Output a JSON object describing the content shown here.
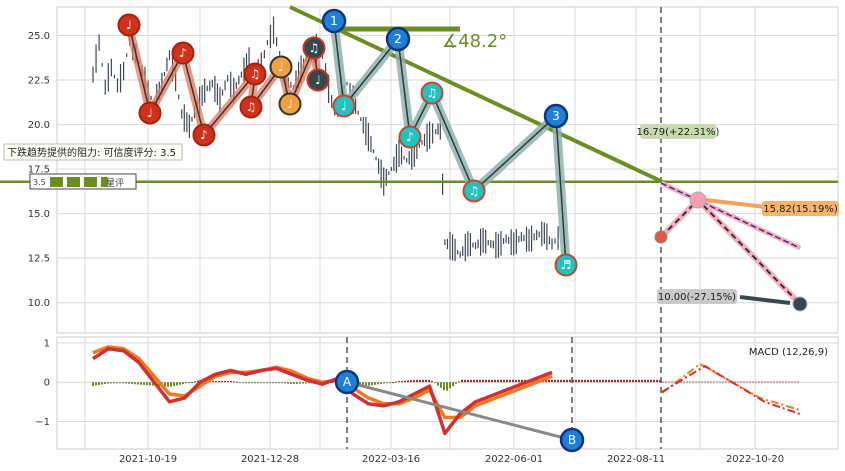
{
  "chart_data": [
    {
      "type": "line",
      "panel": "price",
      "y_ticks": [
        "25.0",
        "22.5",
        "20.0",
        "17.5",
        "15.0",
        "12.5",
        "10.0"
      ],
      "ylim": [
        8.3,
        26.6
      ],
      "x_ticks": [
        "2021-10-19",
        "2021-12-28",
        "2022-03-16",
        "2022-06-01",
        "2022-08-11",
        "2022-10-20"
      ],
      "grid": true,
      "angle_label": "∡48.2°",
      "resistance_label": "下跌趋势提供的阻力: 可信度评分: 3.5",
      "rating_label": "3.5",
      "rating_suffix": "星评",
      "rating_stars": 3.5,
      "support_level": 16.79,
      "callouts": [
        {
          "text": "16.79(+22.31%)",
          "color": "#c8dbb0"
        },
        {
          "text": "15.82(15.19%)",
          "color": "#f4b56a"
        },
        {
          "text": "10.00(-27.15%)",
          "color": "#c9c9c9"
        }
      ],
      "wave_labels": [
        "1",
        "2",
        "3"
      ],
      "series": [
        {
          "values": [
            [
              0,
              22.8
            ],
            [
              0.4,
              24.6
            ],
            [
              0.8,
              22.1
            ],
            [
              1.2,
              23.2
            ],
            [
              1.6,
              22.2
            ],
            [
              2,
              23.0
            ],
            [
              2.4,
              24.8
            ],
            [
              2.8,
              24.0
            ],
            [
              3.2,
              23.0
            ],
            [
              3.6,
              21.9
            ],
            [
              4,
              21.1
            ],
            [
              4.5,
              22.3
            ],
            [
              5,
              23.9
            ],
            [
              5.4,
              22.5
            ],
            [
              5.8,
              20.6
            ],
            [
              6.3,
              19.9
            ],
            [
              6.8,
              21.1
            ],
            [
              7.3,
              21.9
            ],
            [
              7.8,
              22.3
            ],
            [
              8.3,
              21.4
            ],
            [
              8.8,
              22.6
            ],
            [
              9.2,
              21.9
            ],
            [
              9.7,
              22.8
            ],
            [
              10.2,
              23.6
            ],
            [
              10.6,
              22.7
            ],
            [
              11,
              23.3
            ],
            [
              11.4,
              24.6
            ],
            [
              11.8,
              25.3
            ],
            [
              12.2,
              24.0
            ],
            [
              12.6,
              22.5
            ],
            [
              13.1,
              22.1
            ],
            [
              13.6,
              23.1
            ],
            [
              14.1,
              24.0
            ],
            [
              14.6,
              24.3
            ],
            [
              15,
              23.8
            ],
            [
              15.4,
              22.0
            ],
            [
              15.8,
              20.6
            ],
            [
              16.2,
              21.3
            ],
            [
              16.6,
              22.3
            ],
            [
              17,
              21.4
            ],
            [
              17.5,
              20.3
            ],
            [
              18,
              19.3
            ],
            [
              18.5,
              18.1
            ],
            [
              19,
              16.8
            ],
            [
              19.5,
              17.5
            ],
            [
              20,
              18.4
            ],
            [
              20.5,
              18.0
            ],
            [
              21,
              18.4
            ],
            [
              21.5,
              19.0
            ],
            [
              22,
              19.4
            ],
            [
              22.4,
              19.6
            ],
            [
              22.7,
              19.9
            ],
            [
              23,
              13.4
            ],
            [
              23.5,
              13.1
            ],
            [
              24,
              12.7
            ],
            [
              24.5,
              13.3
            ],
            [
              25,
              13.2
            ],
            [
              25.5,
              13.5
            ],
            [
              26,
              13.3
            ],
            [
              26.5,
              13.2
            ],
            [
              27,
              13.6
            ],
            [
              27.5,
              13.3
            ],
            [
              28,
              13.7
            ],
            [
              28.5,
              13.5
            ],
            [
              29,
              13.8
            ],
            [
              29.5,
              13.9
            ],
            [
              30,
              13.3
            ],
            [
              30.6,
              13.8
            ]
          ]
        }
      ]
    },
    {
      "type": "line",
      "panel": "macd",
      "title": "MACD (12,26,9)",
      "y_ticks": [
        "1",
        "0",
        "−1"
      ],
      "ylim": [
        -1.7,
        1.15
      ],
      "point_labels": [
        "A",
        "B"
      ],
      "series": [
        {
          "values": [
            [
              0,
              0.6
            ],
            [
              1,
              0.85
            ],
            [
              2,
              0.8
            ],
            [
              3,
              0.5
            ],
            [
              4,
              0.0
            ],
            [
              5,
              -0.5
            ],
            [
              6,
              -0.4
            ],
            [
              7,
              0.0
            ],
            [
              8,
              0.2
            ],
            [
              9,
              0.3
            ],
            [
              10,
              0.2
            ],
            [
              11,
              0.3
            ],
            [
              12,
              0.35
            ],
            [
              13,
              0.2
            ],
            [
              14,
              0.05
            ],
            [
              15,
              -0.05
            ],
            [
              16,
              0.1
            ],
            [
              17,
              -0.3
            ],
            [
              18,
              -0.55
            ],
            [
              19,
              -0.6
            ],
            [
              20,
              -0.5
            ],
            [
              21,
              -0.3
            ],
            [
              22,
              -0.1
            ],
            [
              23,
              -1.3
            ],
            [
              24,
              -0.8
            ],
            [
              25,
              -0.5
            ],
            [
              26,
              -0.35
            ],
            [
              27,
              -0.2
            ],
            [
              28,
              -0.05
            ],
            [
              29,
              0.1
            ],
            [
              30,
              0.25
            ]
          ]
        },
        {
          "values": [
            [
              0,
              0.75
            ],
            [
              1,
              0.9
            ],
            [
              2,
              0.85
            ],
            [
              3,
              0.6
            ],
            [
              4,
              0.15
            ],
            [
              5,
              -0.3
            ],
            [
              6,
              -0.35
            ],
            [
              7,
              -0.1
            ],
            [
              8,
              0.15
            ],
            [
              9,
              0.25
            ],
            [
              10,
              0.25
            ],
            [
              11,
              0.3
            ],
            [
              12,
              0.38
            ],
            [
              13,
              0.28
            ],
            [
              14,
              0.1
            ],
            [
              15,
              0.0
            ],
            [
              16,
              0.05
            ],
            [
              17,
              -0.15
            ],
            [
              18,
              -0.4
            ],
            [
              19,
              -0.55
            ],
            [
              20,
              -0.55
            ],
            [
              21,
              -0.4
            ],
            [
              22,
              -0.2
            ],
            [
              23,
              -0.9
            ],
            [
              24,
              -0.9
            ],
            [
              25,
              -0.6
            ],
            [
              26,
              -0.45
            ],
            [
              27,
              -0.3
            ],
            [
              28,
              -0.15
            ],
            [
              29,
              0.0
            ],
            [
              30,
              0.15
            ]
          ]
        }
      ]
    }
  ]
}
